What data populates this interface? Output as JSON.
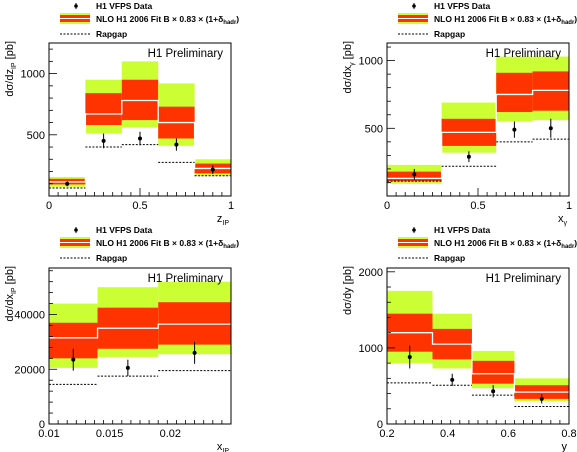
{
  "colors": {
    "outer_band": "#ccff33",
    "inner_band": "#ff3300",
    "central_line": "#ffffff",
    "data": "#000000",
    "rapgap": "#000000"
  },
  "chart_data": [
    {
      "type": "bar",
      "title": "H1 Preliminary",
      "xlabel": "z_IP",
      "ylabel": "dσ/dz_IP [pb]",
      "xlim": [
        0,
        1
      ],
      "ylim": [
        0,
        1250
      ],
      "xticks": [
        "0",
        "0.5",
        "1"
      ],
      "yticks": [
        "500",
        "1000"
      ],
      "grid": false,
      "legend": {
        "placement": "top-left",
        "entries": [
          "H1 VFPS Data",
          "NLO H1 2006 Fit B × 0.83 × (1+δ_hadr)",
          "Rapgap"
        ]
      },
      "bins": [
        [
          0,
          0.2
        ],
        [
          0.2,
          0.4
        ],
        [
          0.4,
          0.6
        ],
        [
          0.6,
          0.8
        ],
        [
          0.8,
          1.0
        ]
      ],
      "series": [
        {
          "name": "H1 VFPS Data",
          "x": [
            0.1,
            0.3,
            0.5,
            0.7,
            0.9
          ],
          "y": [
            100,
            450,
            470,
            420,
            215
          ],
          "err": [
            20,
            60,
            55,
            50,
            35
          ]
        },
        {
          "name": "NLO H1 2006 Fit B × 0.83 × (1+δ_hadr)",
          "central": [
            115,
            670,
            780,
            600,
            225
          ],
          "inner_low": [
            95,
            580,
            620,
            470,
            185
          ],
          "inner_high": [
            140,
            840,
            950,
            730,
            265
          ],
          "outer_low": [
            75,
            510,
            560,
            410,
            165
          ],
          "outer_high": [
            155,
            950,
            1100,
            920,
            300
          ]
        },
        {
          "name": "Rapgap",
          "y": [
            65,
            400,
            420,
            275,
            165
          ]
        }
      ]
    },
    {
      "type": "bar",
      "title": "H1 Preliminary",
      "xlabel": "x_γ",
      "ylabel": "dσ/dx_γ [pb]",
      "xlim": [
        0,
        1
      ],
      "ylim": [
        0,
        1130
      ],
      "xticks": [
        "0",
        "0.5",
        "1"
      ],
      "yticks": [
        "500",
        "1000"
      ],
      "grid": false,
      "legend": {
        "placement": "top-left",
        "entries": [
          "H1 VFPS Data",
          "NLO H1 2006 Fit B × 0.83 × (1+δ_hadr)",
          "Rapgap"
        ]
      },
      "bins": [
        [
          0.0,
          0.3
        ],
        [
          0.3,
          0.6
        ],
        [
          0.6,
          0.8
        ],
        [
          0.8,
          1.0
        ]
      ],
      "series": [
        {
          "name": "H1 VFPS Data",
          "x": [
            0.15,
            0.45,
            0.7,
            0.9
          ],
          "y": [
            160,
            290,
            490,
            500
          ],
          "err": [
            40,
            40,
            60,
            70
          ]
        },
        {
          "name": "NLO H1 2006 Fit B × 0.83 × (1+δ_hadr)",
          "central": [
            130,
            470,
            750,
            780
          ],
          "inner_low": [
            110,
            370,
            620,
            630
          ],
          "inner_high": [
            180,
            570,
            910,
            920
          ],
          "outer_low": [
            90,
            320,
            550,
            560
          ],
          "outer_high": [
            230,
            690,
            1030,
            1030
          ]
        },
        {
          "name": "Rapgap",
          "y": [
            110,
            220,
            400,
            420
          ]
        }
      ]
    },
    {
      "type": "bar",
      "title": "H1 Preliminary",
      "xlabel": "x_IP",
      "ylabel": "dσ/dx_IP [pb]",
      "xlim": [
        0.01,
        0.025
      ],
      "ylim": [
        0,
        57000
      ],
      "xticks": [
        "0.01",
        "0.015",
        "0.02"
      ],
      "yticks": [
        "0",
        "20000",
        "40000"
      ],
      "grid": false,
      "legend": {
        "placement": "top-left",
        "entries": [
          "H1 VFPS Data",
          "NLO H1 2006 Fit B × 0.83 × (1+δ_hadr)",
          "Rapgap"
        ]
      },
      "bins": [
        [
          0.01,
          0.014
        ],
        [
          0.014,
          0.019
        ],
        [
          0.019,
          0.025
        ]
      ],
      "series": [
        {
          "name": "H1 VFPS Data",
          "x": [
            0.012,
            0.0165,
            0.022
          ],
          "y": [
            23500,
            20500,
            26000
          ],
          "err": [
            4000,
            3000,
            4000
          ]
        },
        {
          "name": "NLO H1 2006 Fit B × 0.83 × (1+δ_hadr)",
          "central": [
            31500,
            35000,
            36500
          ],
          "inner_low": [
            24000,
            27500,
            29000
          ],
          "inner_high": [
            37000,
            42500,
            44500
          ],
          "outer_low": [
            20500,
            24500,
            25500
          ],
          "outer_high": [
            44000,
            50000,
            52000
          ]
        },
        {
          "name": "Rapgap",
          "y": [
            14500,
            17500,
            19500
          ]
        }
      ]
    },
    {
      "type": "bar",
      "title": "H1 Preliminary",
      "xlabel": "y",
      "ylabel": "dσ/dy [pb]",
      "xlim": [
        0.2,
        0.8
      ],
      "ylim": [
        0,
        2050
      ],
      "xticks": [
        "0.2",
        "0.4",
        "0.6",
        "0.8"
      ],
      "yticks": [
        "0",
        "1000",
        "2000"
      ],
      "grid": false,
      "legend": {
        "placement": "top-left",
        "entries": [
          "H1 VFPS Data",
          "NLO H1 2006 Fit B × 0.83 × (1+δ_hadr)",
          "Rapgap"
        ]
      },
      "bins": [
        [
          0.2,
          0.35
        ],
        [
          0.35,
          0.48
        ],
        [
          0.48,
          0.62
        ],
        [
          0.62,
          0.8
        ]
      ],
      "series": [
        {
          "name": "H1 VFPS Data",
          "x": [
            0.275,
            0.415,
            0.55,
            0.71
          ],
          "y": [
            880,
            580,
            430,
            330
          ],
          "err": [
            150,
            80,
            80,
            60
          ]
        },
        {
          "name": "NLO H1 2006 Fit B × 0.83 × (1+δ_hadr)",
          "central": [
            1200,
            1050,
            660,
            420
          ],
          "inner_low": [
            950,
            850,
            530,
            330
          ],
          "inner_high": [
            1450,
            1250,
            830,
            510
          ],
          "outer_low": [
            800,
            730,
            470,
            300
          ],
          "outer_high": [
            1750,
            1450,
            960,
            600
          ]
        },
        {
          "name": "Rapgap",
          "y": [
            540,
            510,
            380,
            230
          ]
        }
      ]
    }
  ]
}
